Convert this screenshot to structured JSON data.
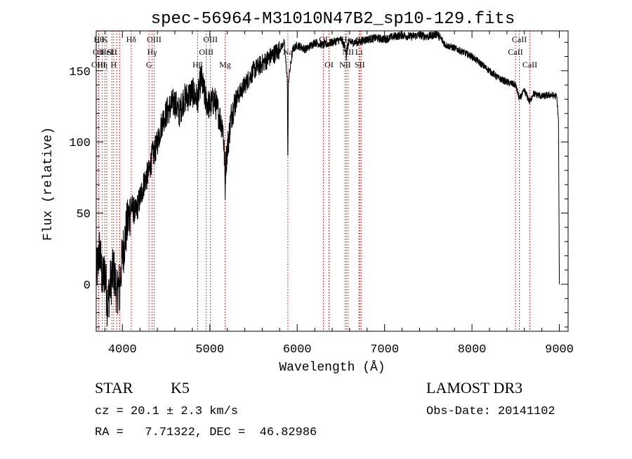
{
  "chart_data": {
    "type": "line",
    "title": "spec-56964-M31010N47B2_sp10-129.fits",
    "xlabel": "Wavelength (Å)",
    "ylabel": "Flux (relative)",
    "xlim": [
      3700,
      9100
    ],
    "ylim": [
      -33,
      178
    ],
    "xticks": [
      4000,
      5000,
      6000,
      7000,
      8000,
      9000
    ],
    "yticks": [
      0,
      50,
      100,
      150
    ],
    "xtick_labels": [
      "4000",
      "5000",
      "6000",
      "7000",
      "8000",
      "9000"
    ],
    "ytick_labels": [
      "0",
      "50",
      "100",
      "150"
    ],
    "spectrum_anchors": [
      [
        3700,
        5
      ],
      [
        3740,
        25
      ],
      [
        3770,
        2
      ],
      [
        3800,
        10
      ],
      [
        3830,
        -15
      ],
      [
        3860,
        0
      ],
      [
        3900,
        10
      ],
      [
        3934,
        -5
      ],
      [
        3969,
        0
      ],
      [
        4000,
        20
      ],
      [
        4050,
        40
      ],
      [
        4100,
        55
      ],
      [
        4150,
        50
      ],
      [
        4200,
        60
      ],
      [
        4250,
        72
      ],
      [
        4300,
        78
      ],
      [
        4340,
        90
      ],
      [
        4380,
        95
      ],
      [
        4420,
        105
      ],
      [
        4460,
        115
      ],
      [
        4500,
        120
      ],
      [
        4550,
        125
      ],
      [
        4600,
        128
      ],
      [
        4650,
        120
      ],
      [
        4700,
        130
      ],
      [
        4750,
        132
      ],
      [
        4800,
        135
      ],
      [
        4861,
        130
      ],
      [
        4900,
        145
      ],
      [
        4950,
        130
      ],
      [
        5000,
        125
      ],
      [
        5050,
        130
      ],
      [
        5100,
        120
      ],
      [
        5150,
        110
      ],
      [
        5175,
        80
      ],
      [
        5200,
        95
      ],
      [
        5250,
        120
      ],
      [
        5300,
        130
      ],
      [
        5400,
        140
      ],
      [
        5500,
        150
      ],
      [
        5600,
        155
      ],
      [
        5700,
        160
      ],
      [
        5800,
        165
      ],
      [
        5850,
        170
      ],
      [
        5893,
        140
      ],
      [
        5950,
        165
      ],
      [
        6000,
        168
      ],
      [
        6100,
        165
      ],
      [
        6200,
        170
      ],
      [
        6300,
        168
      ],
      [
        6400,
        170
      ],
      [
        6500,
        172
      ],
      [
        6563,
        165
      ],
      [
        6600,
        170
      ],
      [
        6700,
        170
      ],
      [
        6800,
        172
      ],
      [
        6900,
        173
      ],
      [
        7000,
        172
      ],
      [
        7100,
        174
      ],
      [
        7200,
        175
      ],
      [
        7300,
        174
      ],
      [
        7400,
        175
      ],
      [
        7500,
        174
      ],
      [
        7600,
        176
      ],
      [
        7700,
        168
      ],
      [
        7800,
        166
      ],
      [
        7900,
        163
      ],
      [
        8000,
        160
      ],
      [
        8100,
        155
      ],
      [
        8200,
        150
      ],
      [
        8300,
        145
      ],
      [
        8400,
        142
      ],
      [
        8500,
        140
      ],
      [
        8542,
        130
      ],
      [
        8600,
        136
      ],
      [
        8662,
        128
      ],
      [
        8700,
        134
      ],
      [
        8800,
        132
      ],
      [
        8900,
        133
      ],
      [
        8970,
        132
      ],
      [
        8990,
        115
      ],
      [
        9000,
        0
      ]
    ],
    "spectrum_noise": [
      [
        3700,
        4100,
        18
      ],
      [
        4100,
        4500,
        10
      ],
      [
        4500,
        5300,
        11
      ],
      [
        5300,
        5800,
        7
      ],
      [
        5800,
        7700,
        3
      ],
      [
        7700,
        9000,
        2.5
      ]
    ],
    "spectrum_dips": [
      [
        5893,
        60
      ],
      [
        6563,
        8
      ],
      [
        5175,
        15
      ],
      [
        3934,
        10
      ],
      [
        3969,
        10
      ]
    ],
    "lines": [
      {
        "x": 3730,
        "label": "Hθ",
        "row": 0
      },
      {
        "x": 3727,
        "label": "OII",
        "row": 1
      },
      {
        "x": 3727,
        "label": "OIII",
        "row": 2
      },
      {
        "x": 3770,
        "label": "Hη",
        "row": 2
      },
      {
        "x": 3800,
        "label": "K",
        "row": 0
      },
      {
        "x": 3820,
        "label": "HeI",
        "row": 1
      },
      {
        "x": 3880,
        "label": "SII",
        "row": 1
      },
      {
        "x": 3900,
        "label": "H",
        "row": 2
      },
      {
        "x": 3934,
        "label": "",
        "row": -1
      },
      {
        "x": 3969,
        "label": "",
        "row": -1
      },
      {
        "x": 4101,
        "label": "Hδ",
        "row": 0
      },
      {
        "x": 4304,
        "label": "G",
        "row": 2
      },
      {
        "x": 4340,
        "label": "Hγ",
        "row": 1
      },
      {
        "x": 4363,
        "label": "OIII",
        "row": 0
      },
      {
        "x": 4861,
        "label": "Hβ",
        "row": 2
      },
      {
        "x": 4959,
        "label": "OIII",
        "row": 1
      },
      {
        "x": 5007,
        "label": "OIII",
        "row": 0
      },
      {
        "x": 5175,
        "label": "Mg",
        "row": 2
      },
      {
        "x": 5893,
        "label": "Na",
        "row": 1
      },
      {
        "x": 6300,
        "label": "OI",
        "row": 0
      },
      {
        "x": 6364,
        "label": "OI",
        "row": 2
      },
      {
        "x": 6548,
        "label": "NII",
        "row": 2
      },
      {
        "x": 6563,
        "label": "Hα",
        "row": 0
      },
      {
        "x": 6583,
        "label": "NII",
        "row": 1
      },
      {
        "x": 6707,
        "label": "Li",
        "row": 1
      },
      {
        "x": 6716,
        "label": "SII",
        "row": 2
      },
      {
        "x": 6731,
        "label": "SII",
        "row": 0
      },
      {
        "x": 8498,
        "label": "CaII",
        "row": 1
      },
      {
        "x": 8542,
        "label": "CaII",
        "row": 0
      },
      {
        "x": 8662,
        "label": "CaII",
        "row": 2
      }
    ],
    "line_color": "#000000",
    "marker_color": "#c00000"
  },
  "info": {
    "class": "STAR",
    "subclass": "K5",
    "survey": "LAMOST DR3",
    "cz": "cz = 20.1 ± 2.3 km/s",
    "obs_date": "Obs-Date: 20141102",
    "coords": "RA =   7.71322, DEC =  46.82986"
  }
}
